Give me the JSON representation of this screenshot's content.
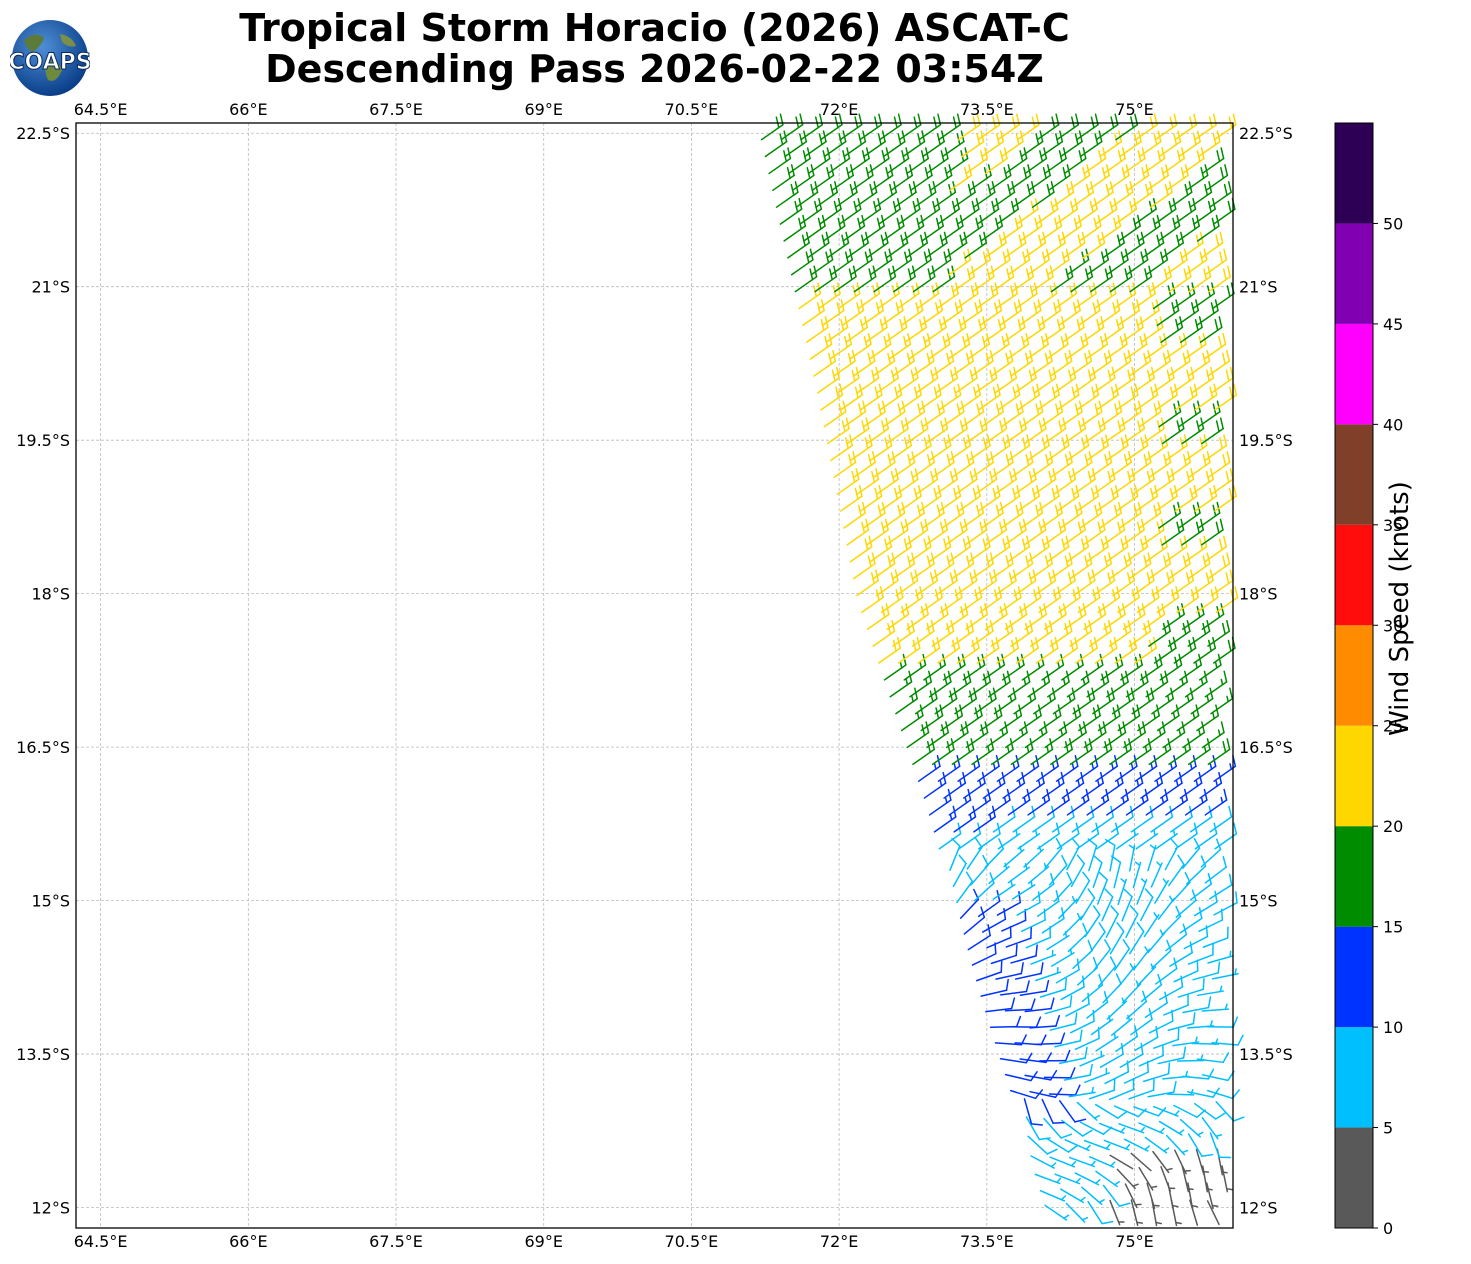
{
  "header": {
    "title_line1": "Tropical Storm Horacio (2026) ASCAT-C",
    "title_line2": "Descending Pass 2026-02-22 03:54Z",
    "logo_text": "COAPS"
  },
  "chart_data": {
    "type": "wind-barb map",
    "title": "Tropical Storm Horacio (2026) ASCAT-C Descending Pass 2026-02-22 03:54Z",
    "xlim": [
      64.25,
      76.0
    ],
    "ylim": [
      -22.6,
      -11.8
    ],
    "x_ticks": [
      64.5,
      66.0,
      67.5,
      69.0,
      70.5,
      72.0,
      73.5,
      75.0
    ],
    "x_tick_labels": [
      "64.5°E",
      "66°E",
      "67.5°E",
      "69°E",
      "70.5°E",
      "72°E",
      "73.5°E",
      "75°E"
    ],
    "y_ticks": [
      -12.0,
      -13.5,
      -15.0,
      -16.5,
      -18.0,
      -19.5,
      -21.0,
      -22.5
    ],
    "y_tick_labels": [
      "12°S",
      "13.5°S",
      "15°S",
      "16.5°S",
      "18°S",
      "19.5°S",
      "21°S",
      "22.5°S"
    ],
    "grid": true,
    "swath": {
      "description": "ASCAT swath covering the eastern part of the domain",
      "west_edge_lon_at_lat": [
        [
          -12.0,
          74.2
        ],
        [
          -14.0,
          73.6
        ],
        [
          -16.0,
          73.0
        ],
        [
          -18.0,
          72.3
        ],
        [
          -20.0,
          71.9
        ],
        [
          -22.6,
          71.3
        ]
      ]
    },
    "wind_regions": [
      {
        "lat_range": [
          -11.8,
          -13.0
        ],
        "speed_kt": 8,
        "note": "light winds near 12°S, some calm barbs"
      },
      {
        "lat_range": [
          -13.0,
          -15.5
        ],
        "speed_kt": 9,
        "note": "cyclonic turning of 5-10 kt winds"
      },
      {
        "lat_range": [
          -15.0,
          -16.3
        ],
        "speed_kt": 12,
        "note": "10-15 kt band along western swath edge and near 16°S"
      },
      {
        "lat_range": [
          -16.3,
          -17.5
        ],
        "speed_kt": 17,
        "note": "15-20 kt southeasterlies"
      },
      {
        "lat_range": [
          -17.5,
          -21.0
        ],
        "speed_kt": 22,
        "note": "20-25 kt southeasterly trades"
      },
      {
        "lat_range": [
          -21.0,
          -22.6
        ],
        "speed_kt": 18,
        "note": "15-25 kt mixed"
      }
    ],
    "colorbar": {
      "label": "Wind Speed (knots)",
      "bounds": [
        0,
        5,
        10,
        15,
        20,
        25,
        30,
        35,
        40,
        45,
        50,
        55
      ],
      "tick_labels": [
        "0",
        "5",
        "10",
        "15",
        "20",
        "25",
        "30",
        "35",
        "40",
        "45",
        "50"
      ],
      "colors": [
        "#595959",
        "#00bfff",
        "#0033ff",
        "#008c00",
        "#ffd700",
        "#ff8c00",
        "#ff0d0d",
        "#7f3f28",
        "#ff00ff",
        "#8000b2",
        "#2e0055"
      ]
    }
  }
}
